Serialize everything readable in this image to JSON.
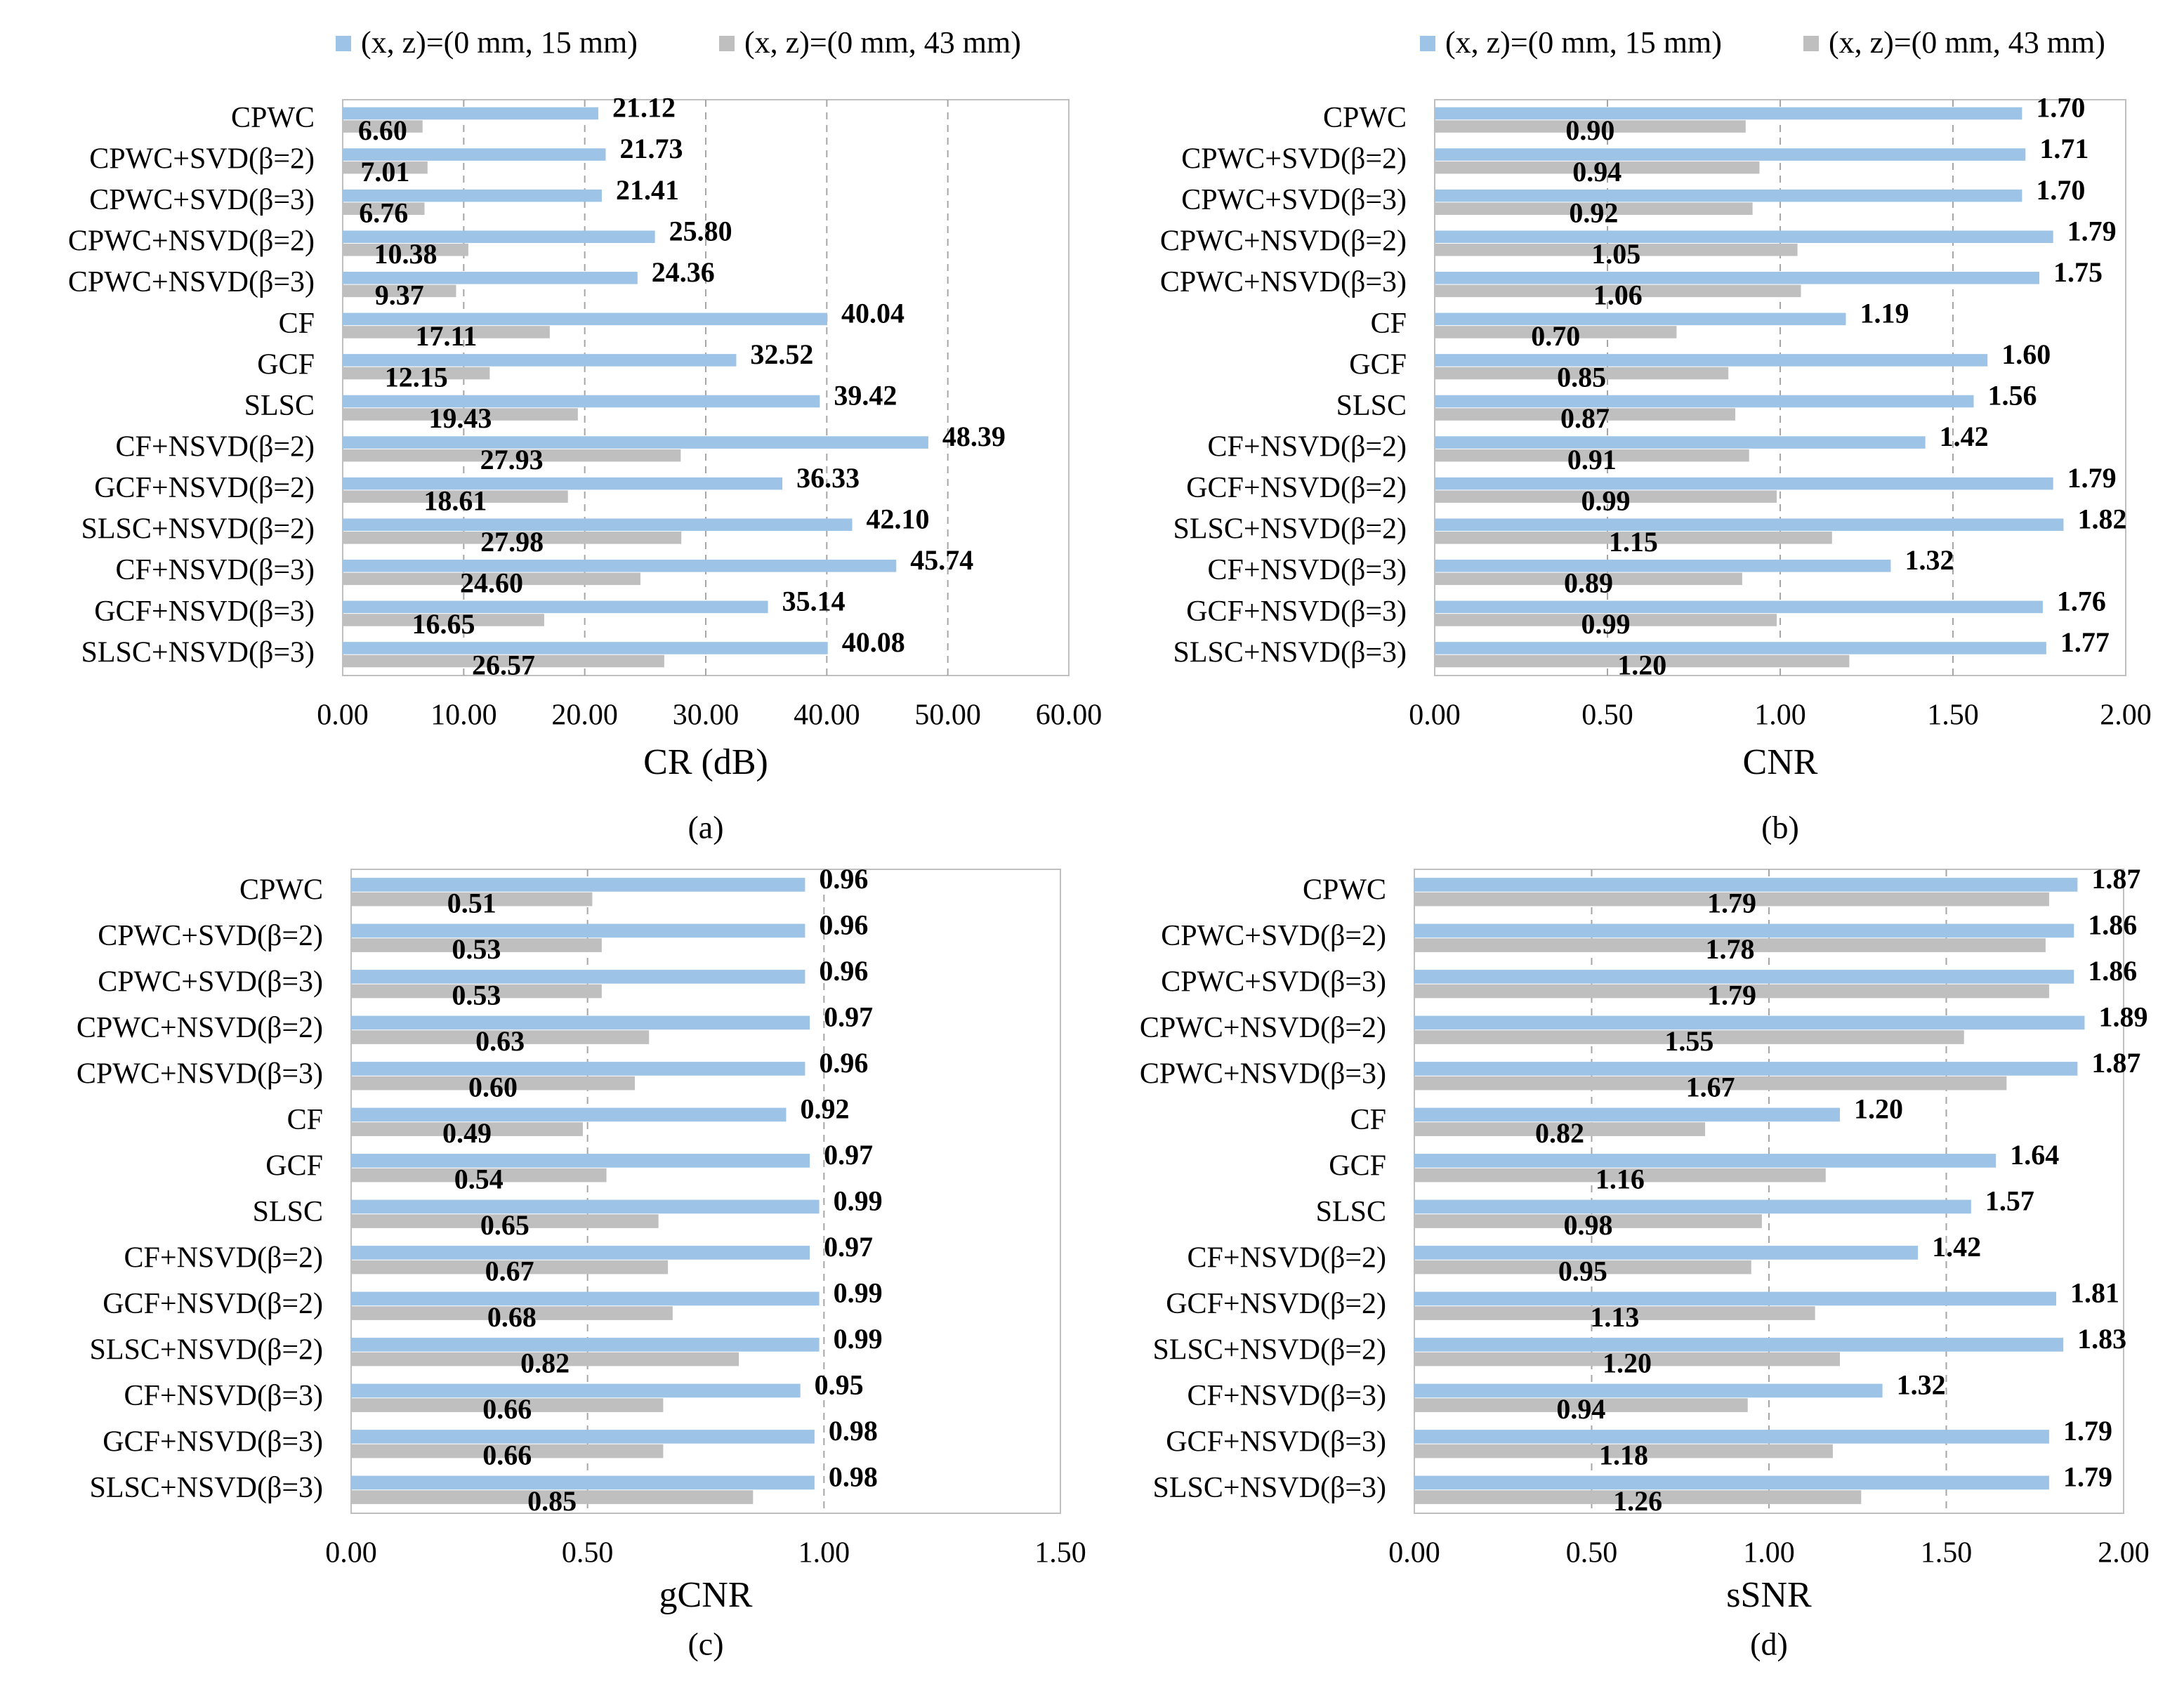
{
  "legend": {
    "series1": "(x, z)=(0 mm, 15 mm)",
    "series2": "(x, z)=(0 mm, 43 mm)"
  },
  "colors": {
    "series1": "#9dc3e6",
    "series2": "#bfbfbf",
    "grid": "#a6a6a6",
    "frame": "#bfbfbf"
  },
  "chart_data": [
    {
      "type": "bar",
      "orientation": "horizontal",
      "panel_label": "(a)",
      "xlabel": "CR (dB)",
      "xlim": [
        0,
        60
      ],
      "xticks": [
        0,
        10,
        20,
        30,
        40,
        50,
        60
      ],
      "xtick_labels": [
        "0.00",
        "10.00",
        "20.00",
        "30.00",
        "40.00",
        "50.00",
        "60.00"
      ],
      "categories": [
        "CPWC",
        "CPWC+SVD(β=2)",
        "CPWC+SVD(β=3)",
        "CPWC+NSVD(β=2)",
        "CPWC+NSVD(β=3)",
        "CF",
        "GCF",
        "SLSC",
        "CF+NSVD(β=2)",
        "GCF+NSVD(β=2)",
        "SLSC+NSVD(β=2)",
        "CF+NSVD(β=3)",
        "GCF+NSVD(β=3)",
        "SLSC+NSVD(β=3)"
      ],
      "series": [
        {
          "name": "(x, z)=(0 mm, 15 mm)",
          "values": [
            21.12,
            21.73,
            21.41,
            25.8,
            24.36,
            40.04,
            32.52,
            39.42,
            48.39,
            36.33,
            42.1,
            45.74,
            35.14,
            40.08
          ],
          "labels": [
            "21.12",
            "21.73",
            "21.41",
            "25.80",
            "24.36",
            "40.04",
            "32.52",
            "39.42",
            "48.39",
            "36.33",
            "42.10",
            "45.74",
            "35.14",
            "40.08"
          ]
        },
        {
          "name": "(x, z)=(0 mm, 43 mm)",
          "values": [
            6.6,
            7.01,
            6.76,
            10.38,
            9.37,
            17.11,
            12.15,
            19.43,
            27.93,
            18.61,
            27.98,
            24.6,
            16.65,
            26.57
          ],
          "labels": [
            "6.60",
            "7.01",
            "6.76",
            "10.38",
            "9.37",
            "17.11",
            "12.15",
            "19.43",
            "27.93",
            "18.61",
            "27.98",
            "24.60",
            "16.65",
            "26.57"
          ]
        }
      ]
    },
    {
      "type": "bar",
      "orientation": "horizontal",
      "panel_label": "(b)",
      "xlabel": "CNR",
      "xlim": [
        0,
        2
      ],
      "xticks": [
        0,
        0.5,
        1,
        1.5,
        2
      ],
      "xtick_labels": [
        "0.00",
        "0.50",
        "1.00",
        "1.50",
        "2.00"
      ],
      "categories": [
        "CPWC",
        "CPWC+SVD(β=2)",
        "CPWC+SVD(β=3)",
        "CPWC+NSVD(β=2)",
        "CPWC+NSVD(β=3)",
        "CF",
        "GCF",
        "SLSC",
        "CF+NSVD(β=2)",
        "GCF+NSVD(β=2)",
        "SLSC+NSVD(β=2)",
        "CF+NSVD(β=3)",
        "GCF+NSVD(β=3)",
        "SLSC+NSVD(β=3)"
      ],
      "series": [
        {
          "name": "(x, z)=(0 mm, 15 mm)",
          "values": [
            1.7,
            1.71,
            1.7,
            1.79,
            1.75,
            1.19,
            1.6,
            1.56,
            1.42,
            1.79,
            1.82,
            1.32,
            1.76,
            1.77
          ],
          "labels": [
            "1.70",
            "1.71",
            "1.70",
            "1.79",
            "1.75",
            "1.19",
            "1.60",
            "1.56",
            "1.42",
            "1.79",
            "1.82",
            "1.32",
            "1.76",
            "1.77"
          ]
        },
        {
          "name": "(x, z)=(0 mm, 43 mm)",
          "values": [
            0.9,
            0.94,
            0.92,
            1.05,
            1.06,
            0.7,
            0.85,
            0.87,
            0.91,
            0.99,
            1.15,
            0.89,
            0.99,
            1.2
          ],
          "labels": [
            "0.90",
            "0.94",
            "0.92",
            "1.05",
            "1.06",
            "0.70",
            "0.85",
            "0.87",
            "0.91",
            "0.99",
            "1.15",
            "0.89",
            "0.99",
            "1.20"
          ]
        }
      ]
    },
    {
      "type": "bar",
      "orientation": "horizontal",
      "panel_label": "(c)",
      "xlabel": "gCNR",
      "xlim": [
        0,
        1.5
      ],
      "xticks": [
        0,
        0.5,
        1,
        1.5
      ],
      "xtick_labels": [
        "0.00",
        "0.50",
        "1.00",
        "1.50"
      ],
      "categories": [
        "CPWC",
        "CPWC+SVD(β=2)",
        "CPWC+SVD(β=3)",
        "CPWC+NSVD(β=2)",
        "CPWC+NSVD(β=3)",
        "CF",
        "GCF",
        "SLSC",
        "CF+NSVD(β=2)",
        "GCF+NSVD(β=2)",
        "SLSC+NSVD(β=2)",
        "CF+NSVD(β=3)",
        "GCF+NSVD(β=3)",
        "SLSC+NSVD(β=3)"
      ],
      "series": [
        {
          "name": "(x, z)=(0 mm, 15 mm)",
          "values": [
            0.96,
            0.96,
            0.96,
            0.97,
            0.96,
            0.92,
            0.97,
            0.99,
            0.97,
            0.99,
            0.99,
            0.95,
            0.98,
            0.98
          ],
          "labels": [
            "0.96",
            "0.96",
            "0.96",
            "0.97",
            "0.96",
            "0.92",
            "0.97",
            "0.99",
            "0.97",
            "0.99",
            "0.99",
            "0.95",
            "0.98",
            "0.98"
          ]
        },
        {
          "name": "(x, z)=(0 mm, 43 mm)",
          "values": [
            0.51,
            0.53,
            0.53,
            0.63,
            0.6,
            0.49,
            0.54,
            0.65,
            0.67,
            0.68,
            0.82,
            0.66,
            0.66,
            0.85
          ],
          "labels": [
            "0.51",
            "0.53",
            "0.53",
            "0.63",
            "0.60",
            "0.49",
            "0.54",
            "0.65",
            "0.67",
            "0.68",
            "0.82",
            "0.66",
            "0.66",
            "0.85"
          ]
        }
      ]
    },
    {
      "type": "bar",
      "orientation": "horizontal",
      "panel_label": "(d)",
      "xlabel": "sSNR",
      "xlim": [
        0,
        2
      ],
      "xticks": [
        0,
        0.5,
        1,
        1.5,
        2
      ],
      "xtick_labels": [
        "0.00",
        "0.50",
        "1.00",
        "1.50",
        "2.00"
      ],
      "categories": [
        "CPWC",
        "CPWC+SVD(β=2)",
        "CPWC+SVD(β=3)",
        "CPWC+NSVD(β=2)",
        "CPWC+NSVD(β=3)",
        "CF",
        "GCF",
        "SLSC",
        "CF+NSVD(β=2)",
        "GCF+NSVD(β=2)",
        "SLSC+NSVD(β=2)",
        "CF+NSVD(β=3)",
        "GCF+NSVD(β=3)",
        "SLSC+NSVD(β=3)"
      ],
      "series": [
        {
          "name": "(x, z)=(0 mm, 15 mm)",
          "values": [
            1.87,
            1.86,
            1.86,
            1.89,
            1.87,
            1.2,
            1.64,
            1.57,
            1.42,
            1.81,
            1.83,
            1.32,
            1.79,
            1.79
          ],
          "labels": [
            "1.87",
            "1.86",
            "1.86",
            "1.89",
            "1.87",
            "1.20",
            "1.64",
            "1.57",
            "1.42",
            "1.81",
            "1.83",
            "1.32",
            "1.79",
            "1.79"
          ]
        },
        {
          "name": "(x, z)=(0 mm, 43 mm)",
          "values": [
            1.79,
            1.78,
            1.79,
            1.55,
            1.67,
            0.82,
            1.16,
            0.98,
            0.95,
            1.13,
            1.2,
            0.94,
            1.18,
            1.26
          ],
          "labels": [
            "1.79",
            "1.78",
            "1.79",
            "1.55",
            "1.67",
            "0.82",
            "1.16",
            "0.98",
            "0.95",
            "1.13",
            "1.20",
            "0.94",
            "1.18",
            "1.26"
          ]
        }
      ]
    }
  ]
}
